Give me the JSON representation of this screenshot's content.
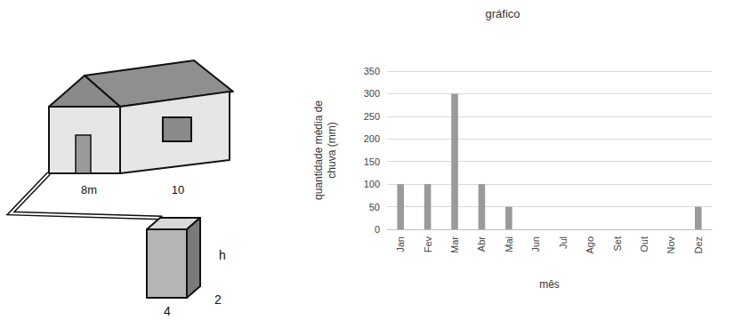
{
  "chart_data": {
    "type": "bar",
    "title": "gráfico",
    "x_label": "mês",
    "y_label": "quantidade média de chuva (mm)",
    "categories": [
      "Jan",
      "Fev",
      "Mar",
      "Abr",
      "Mai",
      "Jun",
      "Jul",
      "Ago",
      "Set",
      "Out",
      "Nov",
      "Dez"
    ],
    "values": [
      100,
      100,
      300,
      100,
      50,
      0,
      0,
      0,
      0,
      0,
      0,
      50
    ],
    "color": "#9a9a9a",
    "ylim": [
      0,
      350
    ],
    "yticks": [
      0,
      50,
      100,
      150,
      200,
      250,
      300,
      350
    ],
    "grid": true
  },
  "diagram": {
    "house_labels": [
      "8m",
      "10"
    ],
    "tank_labels": {
      "height": "h",
      "width": "4",
      "depth": "2"
    }
  }
}
